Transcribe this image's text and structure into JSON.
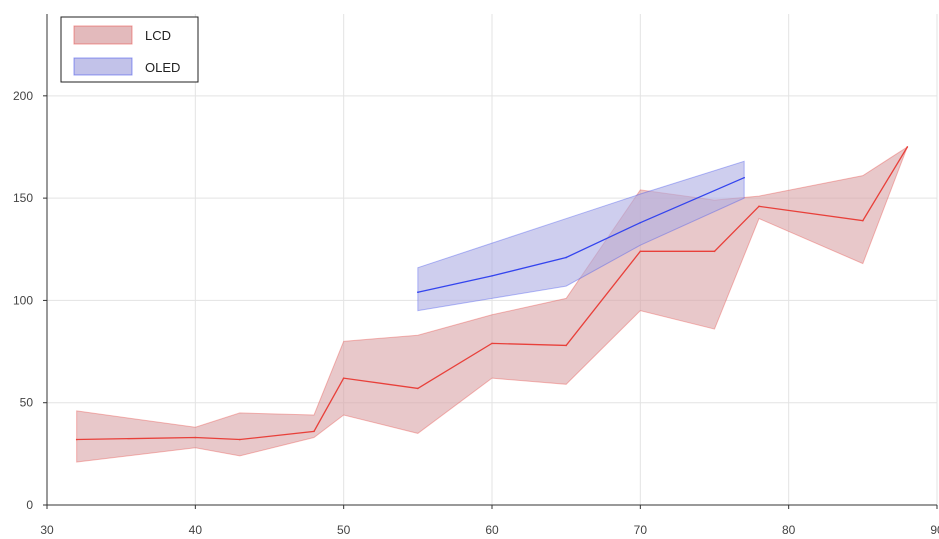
{
  "chart_data": {
    "type": "area",
    "title": "",
    "xlabel": "",
    "ylabel": "",
    "xlim": [
      30,
      90
    ],
    "ylim": [
      0,
      240
    ],
    "xticks": [
      30,
      40,
      50,
      60,
      70,
      80,
      90
    ],
    "yticks": [
      0,
      50,
      100,
      150,
      200
    ],
    "xtick_labels": [
      "30",
      "40",
      "50",
      "60",
      "70",
      "80",
      "90"
    ],
    "ytick_labels": [
      "0",
      "50",
      "100",
      "150",
      "200"
    ],
    "grid": true,
    "legend_position": "top-left",
    "series": [
      {
        "name": "LCD",
        "color": "#e8403a",
        "fill": "#d9a3a6",
        "x": [
          32,
          40,
          43,
          48,
          50,
          55,
          60,
          65,
          70,
          75,
          78,
          85,
          88
        ],
        "y": [
          32,
          33,
          32,
          36,
          62,
          57,
          79,
          78,
          124,
          124,
          146,
          139,
          175
        ],
        "lower": [
          21,
          28,
          24,
          33,
          44,
          35,
          62,
          59,
          95,
          86,
          140,
          118,
          175
        ],
        "upper": [
          46,
          38,
          45,
          44,
          80,
          83,
          93,
          101,
          154,
          149,
          151,
          161,
          175
        ]
      },
      {
        "name": "OLED",
        "color": "#3344ee",
        "fill": "#aeaee2",
        "x": [
          55,
          60,
          65,
          70,
          77
        ],
        "y": [
          104,
          112,
          121,
          138,
          160
        ],
        "lower": [
          95,
          101,
          107,
          127,
          150
        ],
        "upper": [
          116,
          128,
          140,
          152,
          168
        ]
      }
    ]
  }
}
